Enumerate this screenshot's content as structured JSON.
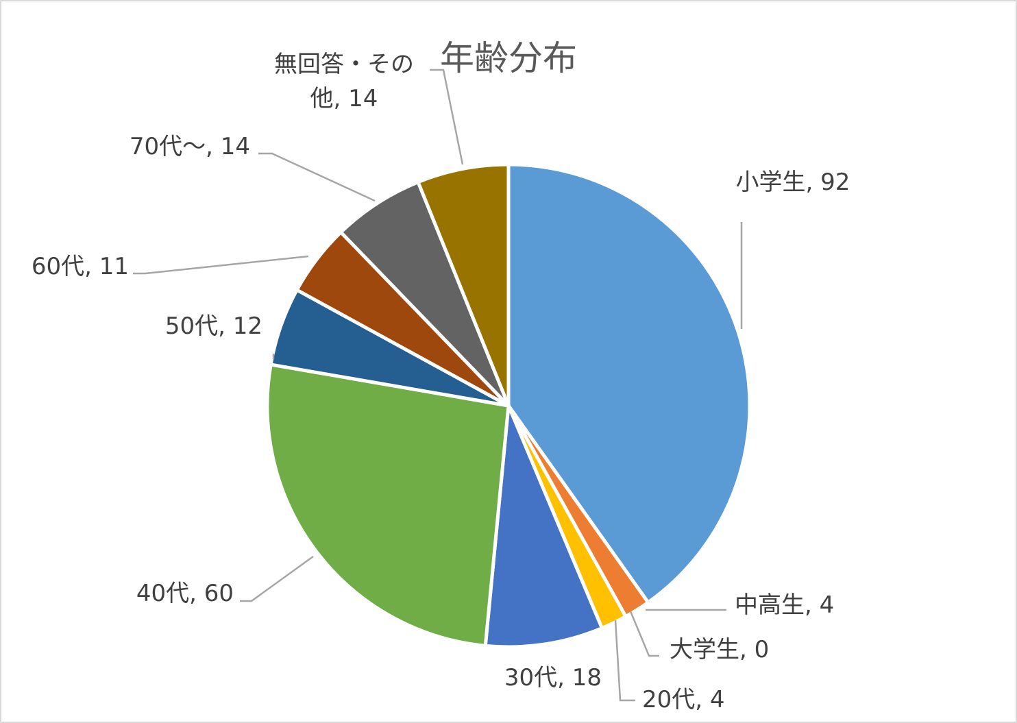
{
  "chart_data": {
    "type": "pie",
    "title": "年齢分布",
    "legend": "none",
    "slices": [
      {
        "category": "小学生",
        "value": 92,
        "label": "小学生, 92",
        "color": "#5b9bd5"
      },
      {
        "category": "中高生",
        "value": 4,
        "label": "中高生, 4",
        "color": "#ed7d31"
      },
      {
        "category": "大学生",
        "value": 0,
        "label": "大学生, 0",
        "color": "#a5a5a5"
      },
      {
        "category": "20代",
        "value": 4,
        "label": "20代, 4",
        "color": "#ffc000"
      },
      {
        "category": "30代",
        "value": 18,
        "label": "30代, 18",
        "color": "#4472c4"
      },
      {
        "category": "40代",
        "value": 60,
        "label": "40代, 60",
        "color": "#70ad47"
      },
      {
        "category": "50代",
        "value": 12,
        "label": "50代, 12",
        "color": "#255e91"
      },
      {
        "category": "60代",
        "value": 11,
        "label": "60代, 11",
        "color": "#9e480e"
      },
      {
        "category": "70代～",
        "value": 14,
        "label": "70代～, 14",
        "color": "#636363"
      },
      {
        "category": "無回答・その他",
        "value": 14,
        "label": "無回答・その他, 14",
        "label_lines": [
          "無回答・その",
          "他, 14"
        ],
        "color": "#997300"
      }
    ]
  }
}
